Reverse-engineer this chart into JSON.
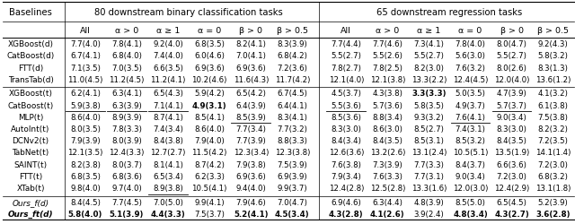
{
  "title_left": "80 downstream binary classification tasks",
  "title_right": "65 downstream regression tasks",
  "col_headers": [
    "All",
    "α > 0",
    "α ≥ 1",
    "α = 0",
    "β > 0",
    "β > 0.5"
  ],
  "row_label_col": "Baselines",
  "sections": [
    {
      "rows": [
        {
          "label": "XGBoost(d)",
          "left": [
            "7.7(4.0)",
            "7.8(4.1)",
            "9.2(4.0)",
            "6.8(3.5)",
            "8.2(4.1)",
            "8.3(3.9)"
          ],
          "right": [
            "7.7(4.4)",
            "7.7(4.6)",
            "7.3(4.1)",
            "7.8(4.0)",
            "8.0(4.7)",
            "9.2(4.3)"
          ]
        },
        {
          "label": "CatBoost(d)",
          "left": [
            "6.7(4.1)",
            "6.8(4.0)",
            "7.4(4.0)",
            "6.0(4.6)",
            "7.0(4.1)",
            "6.8(4.2)"
          ],
          "right": [
            "5.5(2.7)",
            "5.5(2.6)",
            "5.5(2.7)",
            "5.6(3.0)",
            "5.5(2.7)",
            "5.8(3.2)"
          ]
        },
        {
          "label": "FTT(d)",
          "left": [
            "7.1(3.5)",
            "7.0(3.5)",
            "6.6(3.5)",
            "6.9(3.6)",
            "6.9(3.6)",
            "7.2(3.6)"
          ],
          "right": [
            "7.8(2.7)",
            "7.8(2.5)",
            "8.2(3.0)",
            "7.6(3.2)",
            "8.0(2.6)",
            "8.3(1.3)"
          ]
        },
        {
          "label": "TransTab(d)",
          "left": [
            "11.0(4.5)",
            "11.2(4.5)",
            "11.2(4.1)",
            "10.2(4.6)",
            "11.6(4.3)",
            "11.7(4.2)"
          ],
          "right": [
            "12.1(4.0)",
            "12.1(3.8)",
            "13.3(2.2)",
            "12.4(4.5)",
            "12.0(4.0)",
            "13.6(1.2)"
          ]
        }
      ]
    },
    {
      "rows": [
        {
          "label": "XGBoost(t)",
          "left": [
            "6.2(4.1)",
            "6.3(4.1)",
            "6.5(4.3)",
            "5.9(4.2)",
            "6.5(4.2)",
            "6.7(4.5)"
          ],
          "right": [
            "4.5(3.7)",
            "4.3(3.8)",
            "3.3(3.3)",
            "5.0(3.5)",
            "4.7(3.9)",
            "4.1(3.2)"
          ],
          "right_bold": [
            false,
            false,
            true,
            false,
            false,
            false
          ]
        },
        {
          "label": "CatBoost(t)",
          "left": [
            "5.9(3.8)",
            "6.3(3.9)",
            "7.1(4.1)",
            "4.9(3.1)",
            "6.4(3.9)",
            "6.4(4.1)"
          ],
          "right": [
            "5.5(3.6)",
            "5.7(3.6)",
            "5.8(3.5)",
            "4.9(3.7)",
            "5.7(3.7)",
            "6.1(3.8)"
          ],
          "left_bold": [
            false,
            false,
            false,
            true,
            false,
            false
          ],
          "left_underline": [
            true,
            true,
            true,
            false,
            false,
            false
          ],
          "right_underline": [
            true,
            false,
            false,
            false,
            true,
            false
          ]
        },
        {
          "label": "MLP(t)",
          "left": [
            "8.6(4.0)",
            "8.9(3.9)",
            "8.7(4.1)",
            "8.5(4.1)",
            "8.5(3.9)",
            "8.3(4.1)"
          ],
          "right": [
            "8.5(3.6)",
            "8.8(3.4)",
            "9.3(3.2)",
            "7.6(4.1)",
            "9.0(3.4)",
            "7.5(3.8)"
          ],
          "left_underline": [
            false,
            false,
            false,
            false,
            true,
            false
          ],
          "right_underline": [
            false,
            false,
            false,
            true,
            false,
            false
          ]
        },
        {
          "label": "AutoInt(t)",
          "left": [
            "8.0(3.5)",
            "7.8(3.3)",
            "7.4(3.4)",
            "8.6(4.0)",
            "7.7(3.4)",
            "7.7(3.2)"
          ],
          "right": [
            "8.3(3.0)",
            "8.6(3.0)",
            "8.5(2.7)",
            "7.4(3.1)",
            "8.3(3.0)",
            "8.2(3.2)"
          ]
        },
        {
          "label": "DCNv2(t)",
          "left": [
            "7.9(3.9)",
            "8.0(3.9)",
            "8.4(3.8)",
            "7.9(4.0)",
            "7.7(3.9)",
            "8.8(3.3)"
          ],
          "right": [
            "8.4(3.4)",
            "8.4(3.5)",
            "8.5(3.1)",
            "8.5(3.2)",
            "8.4(3.5)",
            "7.2(3.5)"
          ]
        },
        {
          "label": "TabNet(t)",
          "left": [
            "12.1(3.5)",
            "12.4(3.3)",
            "12.7(2.7)",
            "11.5(4.2)",
            "12.3(3.4)",
            "12.3(3.8)"
          ],
          "right": [
            "12.6(3.6)",
            "13.2(2.6)",
            "13.1(2.4)",
            "10.5(5.1)",
            "13.5(1.9)",
            "14.1(1.4)"
          ]
        },
        {
          "label": "SAINT(t)",
          "left": [
            "8.2(3.8)",
            "8.0(3.7)",
            "8.1(4.1)",
            "8.7(4.2)",
            "7.9(3.8)",
            "7.5(3.9)"
          ],
          "right": [
            "7.6(3.8)",
            "7.3(3.9)",
            "7.7(3.3)",
            "8.4(3.7)",
            "6.6(3.6)",
            "7.2(3.0)"
          ]
        },
        {
          "label": "FTT(t)",
          "left": [
            "6.8(3.5)",
            "6.8(3.6)",
            "6.5(3.4)",
            "6.2(3.3)",
            "6.9(3.6)",
            "6.9(3.9)"
          ],
          "right": [
            "7.9(3.4)",
            "7.6(3.3)",
            "7.7(3.1)",
            "9.0(3.4)",
            "7.2(3.0)",
            "6.8(3.2)"
          ]
        },
        {
          "label": "XTab(t)",
          "left": [
            "9.8(4.0)",
            "9.7(4.0)",
            "8.9(3.8)",
            "10.5(4.1)",
            "9.4(4.0)",
            "9.9(3.7)"
          ],
          "right": [
            "12.4(2.8)",
            "12.5(2.8)",
            "13.3(1.6)",
            "12.0(3.0)",
            "12.4(2.9)",
            "13.1(1.8)"
          ],
          "left_underline": [
            false,
            false,
            true,
            false,
            false,
            false
          ]
        }
      ]
    },
    {
      "rows": [
        {
          "label": "Ours_f(d)",
          "left": [
            "8.4(4.5)",
            "7.7(4.5)",
            "7.0(5.0)",
            "9.9(4.1)",
            "7.9(4.6)",
            "7.0(4.7)"
          ],
          "right": [
            "6.9(4.6)",
            "6.3(4.4)",
            "4.8(3.9)",
            "8.5(5.0)",
            "6.5(4.5)",
            "5.2(3.9)"
          ],
          "label_italic": true
        },
        {
          "label": "Ours_ft(d)",
          "left": [
            "5.8(4.0)",
            "5.1(3.9)",
            "4.4(3.3)",
            "7.5(3.7)",
            "5.2(4.1)",
            "4.5(3.4)"
          ],
          "right": [
            "4.3(2.8)",
            "4.1(2.6)",
            "3.9(2.4)",
            "4.8(3.4)",
            "4.3(2.7)",
            "3.6(2.8)"
          ],
          "left_bold": [
            true,
            true,
            true,
            false,
            true,
            true
          ],
          "right_bold": [
            true,
            true,
            false,
            true,
            true,
            true
          ],
          "right_underline": [
            false,
            false,
            true,
            false,
            false,
            false
          ],
          "label_bold": true,
          "label_italic": true
        }
      ]
    }
  ]
}
